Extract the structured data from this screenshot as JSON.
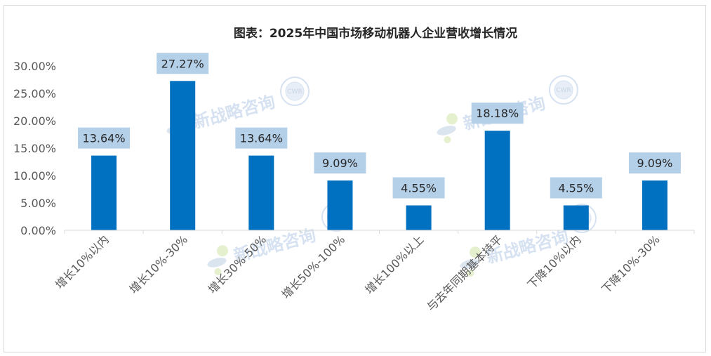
{
  "chart_data": {
    "type": "bar",
    "title": "图表：2025年中国市场移动机器人企业营收增长情况",
    "categories": [
      "增长10%以内",
      "增长10%-30%",
      "增长30%-50%",
      "增长50%-100%",
      "增长100%以上",
      "与去年同期基本持平",
      "下降10%以内",
      "下降10%-30%"
    ],
    "values": [
      13.64,
      27.27,
      13.64,
      9.09,
      4.55,
      18.18,
      4.55,
      9.09
    ],
    "data_labels": [
      "13.64%",
      "27.27%",
      "13.64%",
      "9.09%",
      "4.55%",
      "18.18%",
      "4.55%",
      "9.09%"
    ],
    "y_ticks": [
      "0.00%",
      "5.00%",
      "10.00%",
      "15.00%",
      "20.00%",
      "25.00%",
      "30.00%"
    ],
    "ylim": [
      0,
      30
    ],
    "xlabel": "",
    "ylabel": "",
    "grid": false,
    "legend": "none",
    "colors": {
      "bar": "#0070C0",
      "label_bg": "#B4CFE8",
      "axis": "#d9d9d9"
    }
  },
  "watermark": {
    "text": "新战略咨询",
    "seal": "CWR"
  }
}
